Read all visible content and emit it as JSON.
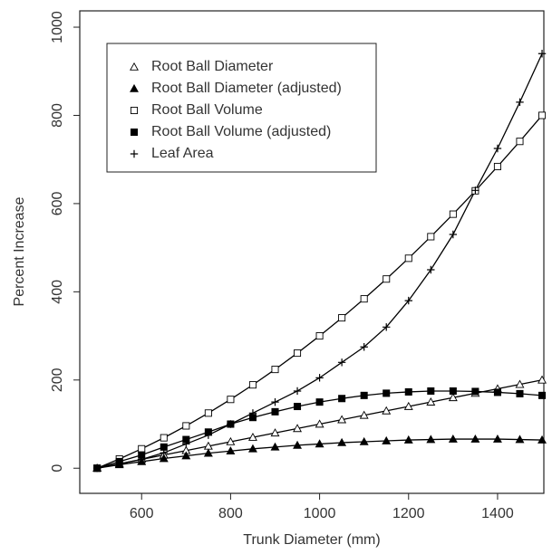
{
  "chart_data": {
    "type": "line",
    "xlabel": "Trunk Diameter (mm)",
    "ylabel": "Percent Increase",
    "x": [
      500,
      550,
      600,
      650,
      700,
      750,
      800,
      850,
      900,
      950,
      1000,
      1050,
      1100,
      1150,
      1200,
      1250,
      1300,
      1350,
      1400,
      1450,
      1500
    ],
    "series": [
      {
        "name": "Root Ball Diameter",
        "color": "#000000",
        "marker": "triangle-open",
        "values": [
          0,
          10,
          20,
          30,
          40,
          50,
          60,
          70,
          80,
          90,
          100,
          110,
          120,
          130,
          140,
          150,
          160,
          170,
          180,
          190,
          200
        ]
      },
      {
        "name": "Root Ball Diameter (adjusted)",
        "color": "#000000",
        "marker": "triangle-filled",
        "values": [
          0,
          8,
          15,
          22,
          28,
          34,
          39,
          44,
          48,
          52,
          55,
          58,
          60,
          62,
          64,
          65,
          66,
          66,
          66,
          65,
          64
        ]
      },
      {
        "name": "Root Ball Volume",
        "color": "#000000",
        "marker": "square-open",
        "values": [
          0,
          21,
          44,
          69,
          96,
          125,
          156,
          189,
          224,
          261,
          300,
          341,
          384,
          429,
          476,
          525,
          576,
          629,
          684,
          741,
          800
        ]
      },
      {
        "name": "Root Ball Volume (adjusted)",
        "color": "#000000",
        "marker": "square-filled",
        "values": [
          0,
          15,
          30,
          48,
          65,
          82,
          100,
          115,
          128,
          140,
          150,
          158,
          165,
          170,
          173,
          175,
          175,
          174,
          172,
          169,
          165
        ]
      },
      {
        "name": "Leaf Area",
        "color": "#000000",
        "marker": "plus",
        "values": [
          0,
          10,
          20,
          35,
          55,
          75,
          100,
          125,
          150,
          175,
          205,
          240,
          275,
          320,
          380,
          450,
          530,
          630,
          725,
          830,
          940
        ]
      }
    ],
    "xlim": [
      461,
      1504
    ],
    "xticks": [
      600,
      800,
      1000,
      1200,
      1400
    ],
    "ylim": [
      -57,
      1037
    ],
    "yticks": [
      0,
      200,
      400,
      600,
      800,
      1000
    ],
    "legend": "upper left"
  }
}
